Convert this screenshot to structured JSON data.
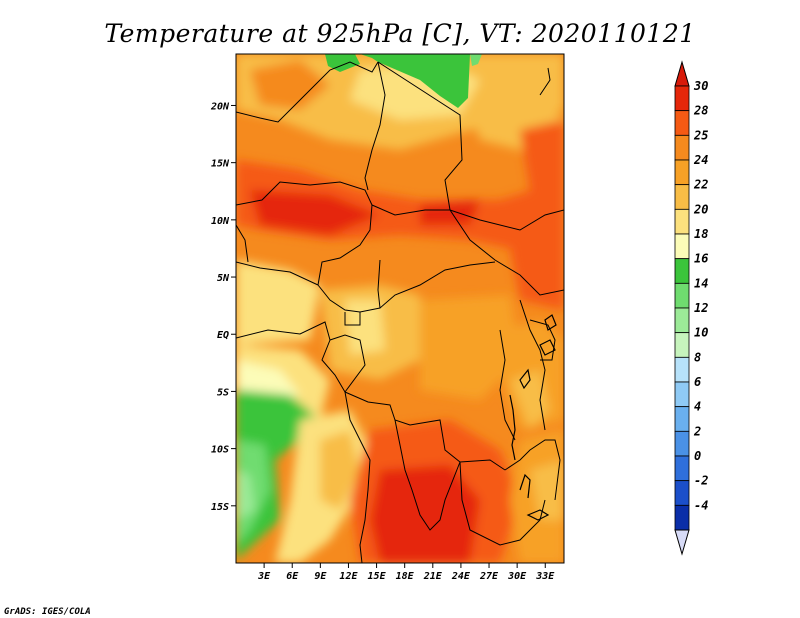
{
  "title": "Temperature at 925hPa [C], VT: 2020110121",
  "credit": "GrADS: IGES/COLA",
  "chart_data": {
    "type": "heatmap",
    "variable": "Temperature",
    "level": "925hPa",
    "units": "C",
    "valid_time": "2020110121",
    "lon_range": [
      0,
      35
    ],
    "lat_range": [
      -20,
      24.5
    ],
    "lon_ticks": [
      "3E",
      "6E",
      "9E",
      "12E",
      "15E",
      "18E",
      "21E",
      "24E",
      "27E",
      "30E",
      "33E"
    ],
    "lat_ticks": [
      "20N",
      "15N",
      "10N",
      "5N",
      "EQ",
      "5S",
      "10S",
      "15S"
    ],
    "colorbar": {
      "labels": [
        "30",
        "28",
        "25",
        "24",
        "22",
        "20",
        "18",
        "16",
        "14",
        "12",
        "10",
        "8",
        "6",
        "4",
        "2",
        "0",
        "-2",
        "-4"
      ],
      "colors": [
        "#e5270a",
        "#f55a14",
        "#f58a1e",
        "#f7a126",
        "#f8bd46",
        "#fce17e",
        "#fcfcb8",
        "#3bc43b",
        "#6fdc6f",
        "#9cea98",
        "#c7f4bd",
        "#b7e2fa",
        "#8fcaf5",
        "#6ab0ef",
        "#4a91e6",
        "#2f6fdb",
        "#1b4fca",
        "#0a2ea8",
        "#091876"
      ],
      "over_color": "#d81a0a",
      "under_color": "#d7dbf7",
      "position": "right"
    }
  }
}
